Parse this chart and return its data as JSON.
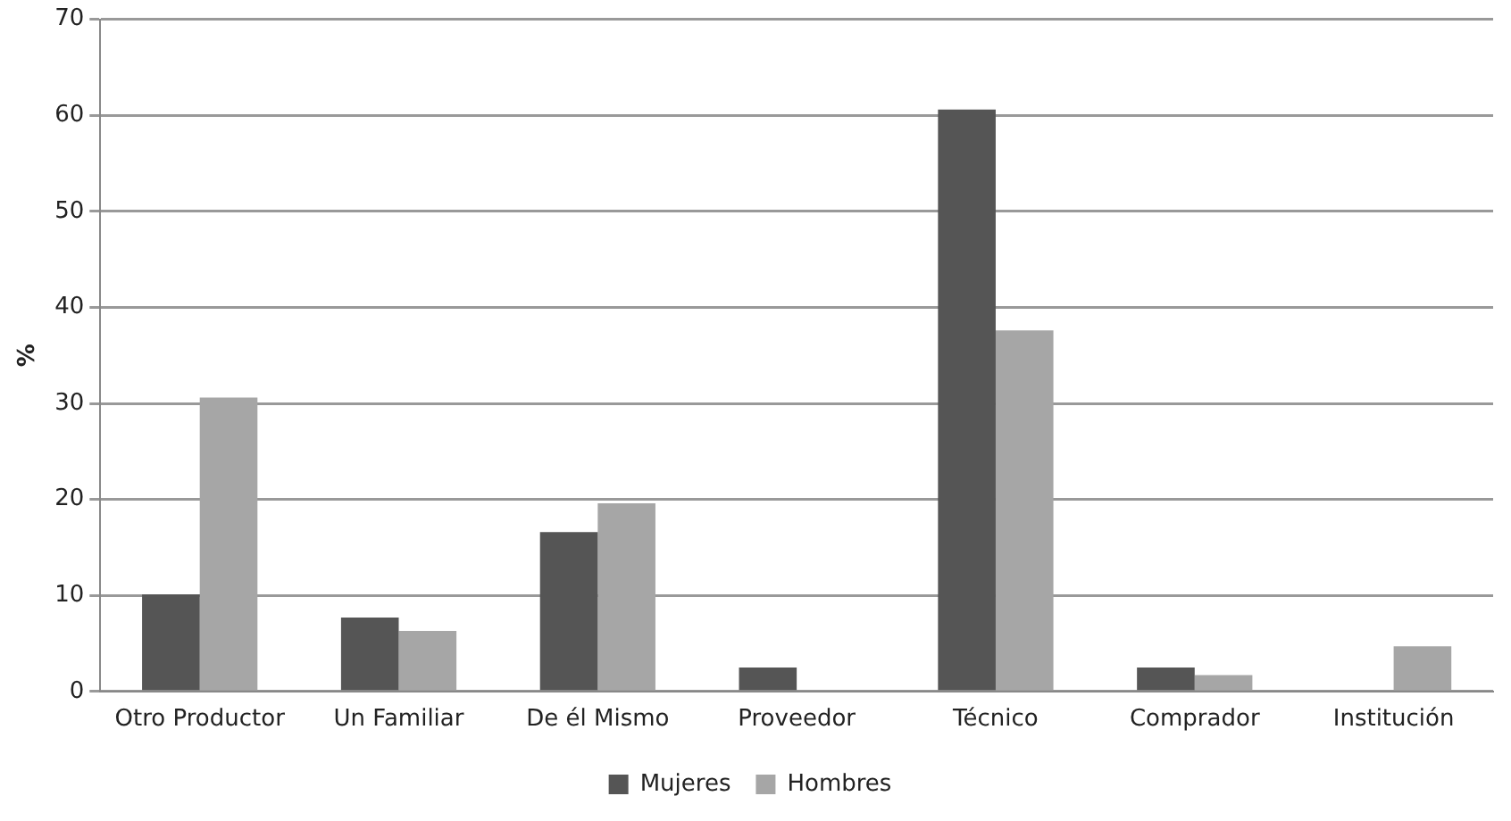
{
  "chart_data": {
    "type": "bar",
    "ylabel": "%",
    "categories": [
      "Otro Productor",
      "Un Familiar",
      "De él Mismo",
      "Proveedor",
      "Técnico",
      "Comprador",
      "Institución"
    ],
    "series": [
      {
        "name": "Mujeres",
        "color": "#555555",
        "values": [
          10.1,
          7.7,
          16.6,
          2.5,
          60.6,
          2.5,
          0
        ]
      },
      {
        "name": "Hombres",
        "color": "#a6a6a6",
        "values": [
          30.6,
          6.3,
          19.6,
          0,
          37.6,
          1.7,
          4.7
        ]
      }
    ],
    "ylim": [
      0,
      70
    ],
    "yticks": [
      0,
      10,
      20,
      30,
      40,
      50,
      60,
      70
    ],
    "grid": "y",
    "legend": "bottom"
  }
}
